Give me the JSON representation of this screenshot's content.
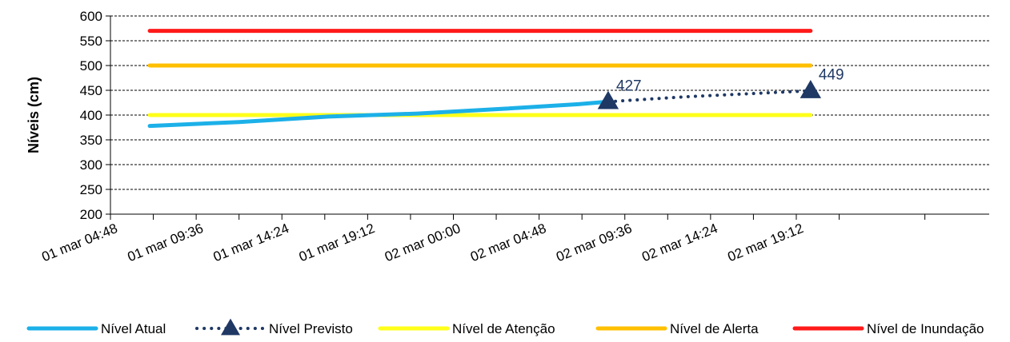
{
  "chart_data": {
    "type": "line",
    "title": "",
    "ylabel": "Níveis  (cm)",
    "xlabel": "",
    "ylim": [
      200,
      600
    ],
    "yticks": [
      200,
      250,
      300,
      350,
      400,
      450,
      500,
      550,
      600
    ],
    "grid": "horizontal-dashed",
    "legend_position": "bottom",
    "x_range": [
      "2024-03-01T04:48",
      "2024-03-03T06:00"
    ],
    "xticks": [
      {
        "value": "2024-03-01T04:48",
        "label": "01 mar 04:48"
      },
      {
        "value": "2024-03-01T09:36",
        "label": "01 mar 09:36"
      },
      {
        "value": "2024-03-01T14:24",
        "label": "01 mar 14:24"
      },
      {
        "value": "2024-03-01T19:12",
        "label": "01 mar 19:12"
      },
      {
        "value": "2024-03-02T00:00",
        "label": "02 mar 00:00"
      },
      {
        "value": "2024-03-02T04:48",
        "label": "02 mar 04:48"
      },
      {
        "value": "2024-03-02T09:36",
        "label": "02 mar 09:36"
      },
      {
        "value": "2024-03-02T14:24",
        "label": "02 mar 14:24"
      },
      {
        "value": "2024-03-02T19:12",
        "label": "02 mar 19:12"
      }
    ],
    "series": [
      {
        "name": "Nível Atual",
        "color": "#1cb0e8",
        "style": "solid",
        "points": [
          {
            "x": "2024-03-01T07:00",
            "y": 378
          },
          {
            "x": "2024-03-01T12:00",
            "y": 386
          },
          {
            "x": "2024-03-01T17:00",
            "y": 397
          },
          {
            "x": "2024-03-01T22:00",
            "y": 403
          },
          {
            "x": "2024-03-02T03:00",
            "y": 413
          },
          {
            "x": "2024-03-02T07:00",
            "y": 422
          },
          {
            "x": "2024-03-02T08:40",
            "y": 427
          }
        ]
      },
      {
        "name": "Nível Previsto",
        "color": "#1f3864",
        "style": "dotted",
        "marker": "triangle",
        "points": [
          {
            "x": "2024-03-02T08:40",
            "y": 427,
            "label": "427"
          },
          {
            "x": "2024-03-02T13:00",
            "y": 437
          },
          {
            "x": "2024-03-02T20:00",
            "y": 449,
            "label": "449"
          }
        ]
      },
      {
        "name": "Nível de Atenção",
        "color": "#ffff1a",
        "style": "solid",
        "points": [
          {
            "x": "2024-03-01T07:00",
            "y": 400
          },
          {
            "x": "2024-03-02T20:00",
            "y": 400
          }
        ]
      },
      {
        "name": "Nível de Alerta",
        "color": "#ffc000",
        "style": "solid",
        "points": [
          {
            "x": "2024-03-01T07:00",
            "y": 500
          },
          {
            "x": "2024-03-02T20:00",
            "y": 500
          }
        ]
      },
      {
        "name": "Nível de Inundação",
        "color": "#ff1a1a",
        "style": "solid",
        "points": [
          {
            "x": "2024-03-01T07:00",
            "y": 570
          },
          {
            "x": "2024-03-02T20:00",
            "y": 570
          }
        ]
      }
    ]
  }
}
